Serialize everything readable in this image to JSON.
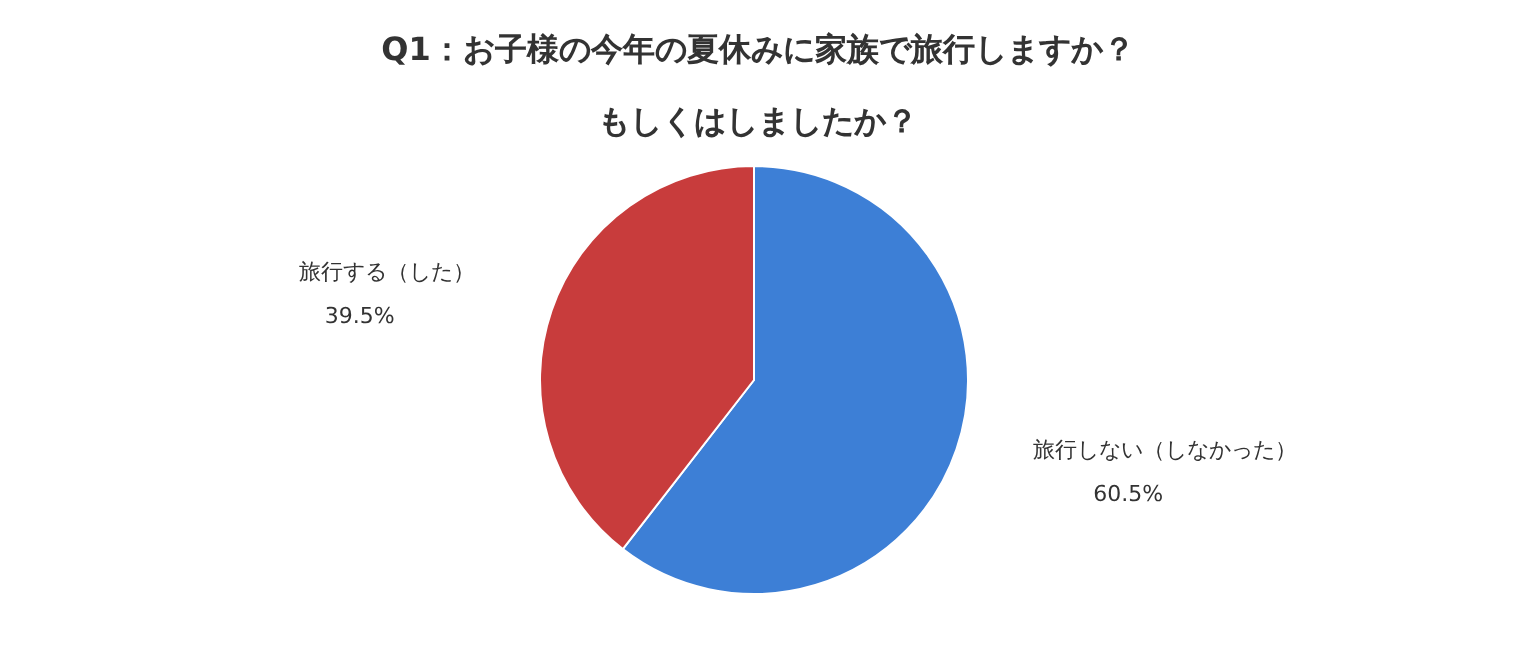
{
  "chart_data": {
    "type": "pie",
    "title": "Q1：お子様の今年の夏休みに家族で旅行しますか？",
    "subtitle": "もしくはしましたか？",
    "categories": [
      "旅行しない（しなかった）",
      "旅行する（した）"
    ],
    "values": [
      60.5,
      39.5
    ],
    "colors": [
      "#3d7fd6",
      "#c83c3c"
    ],
    "value_labels": [
      "60.5%",
      "39.5%"
    ]
  }
}
